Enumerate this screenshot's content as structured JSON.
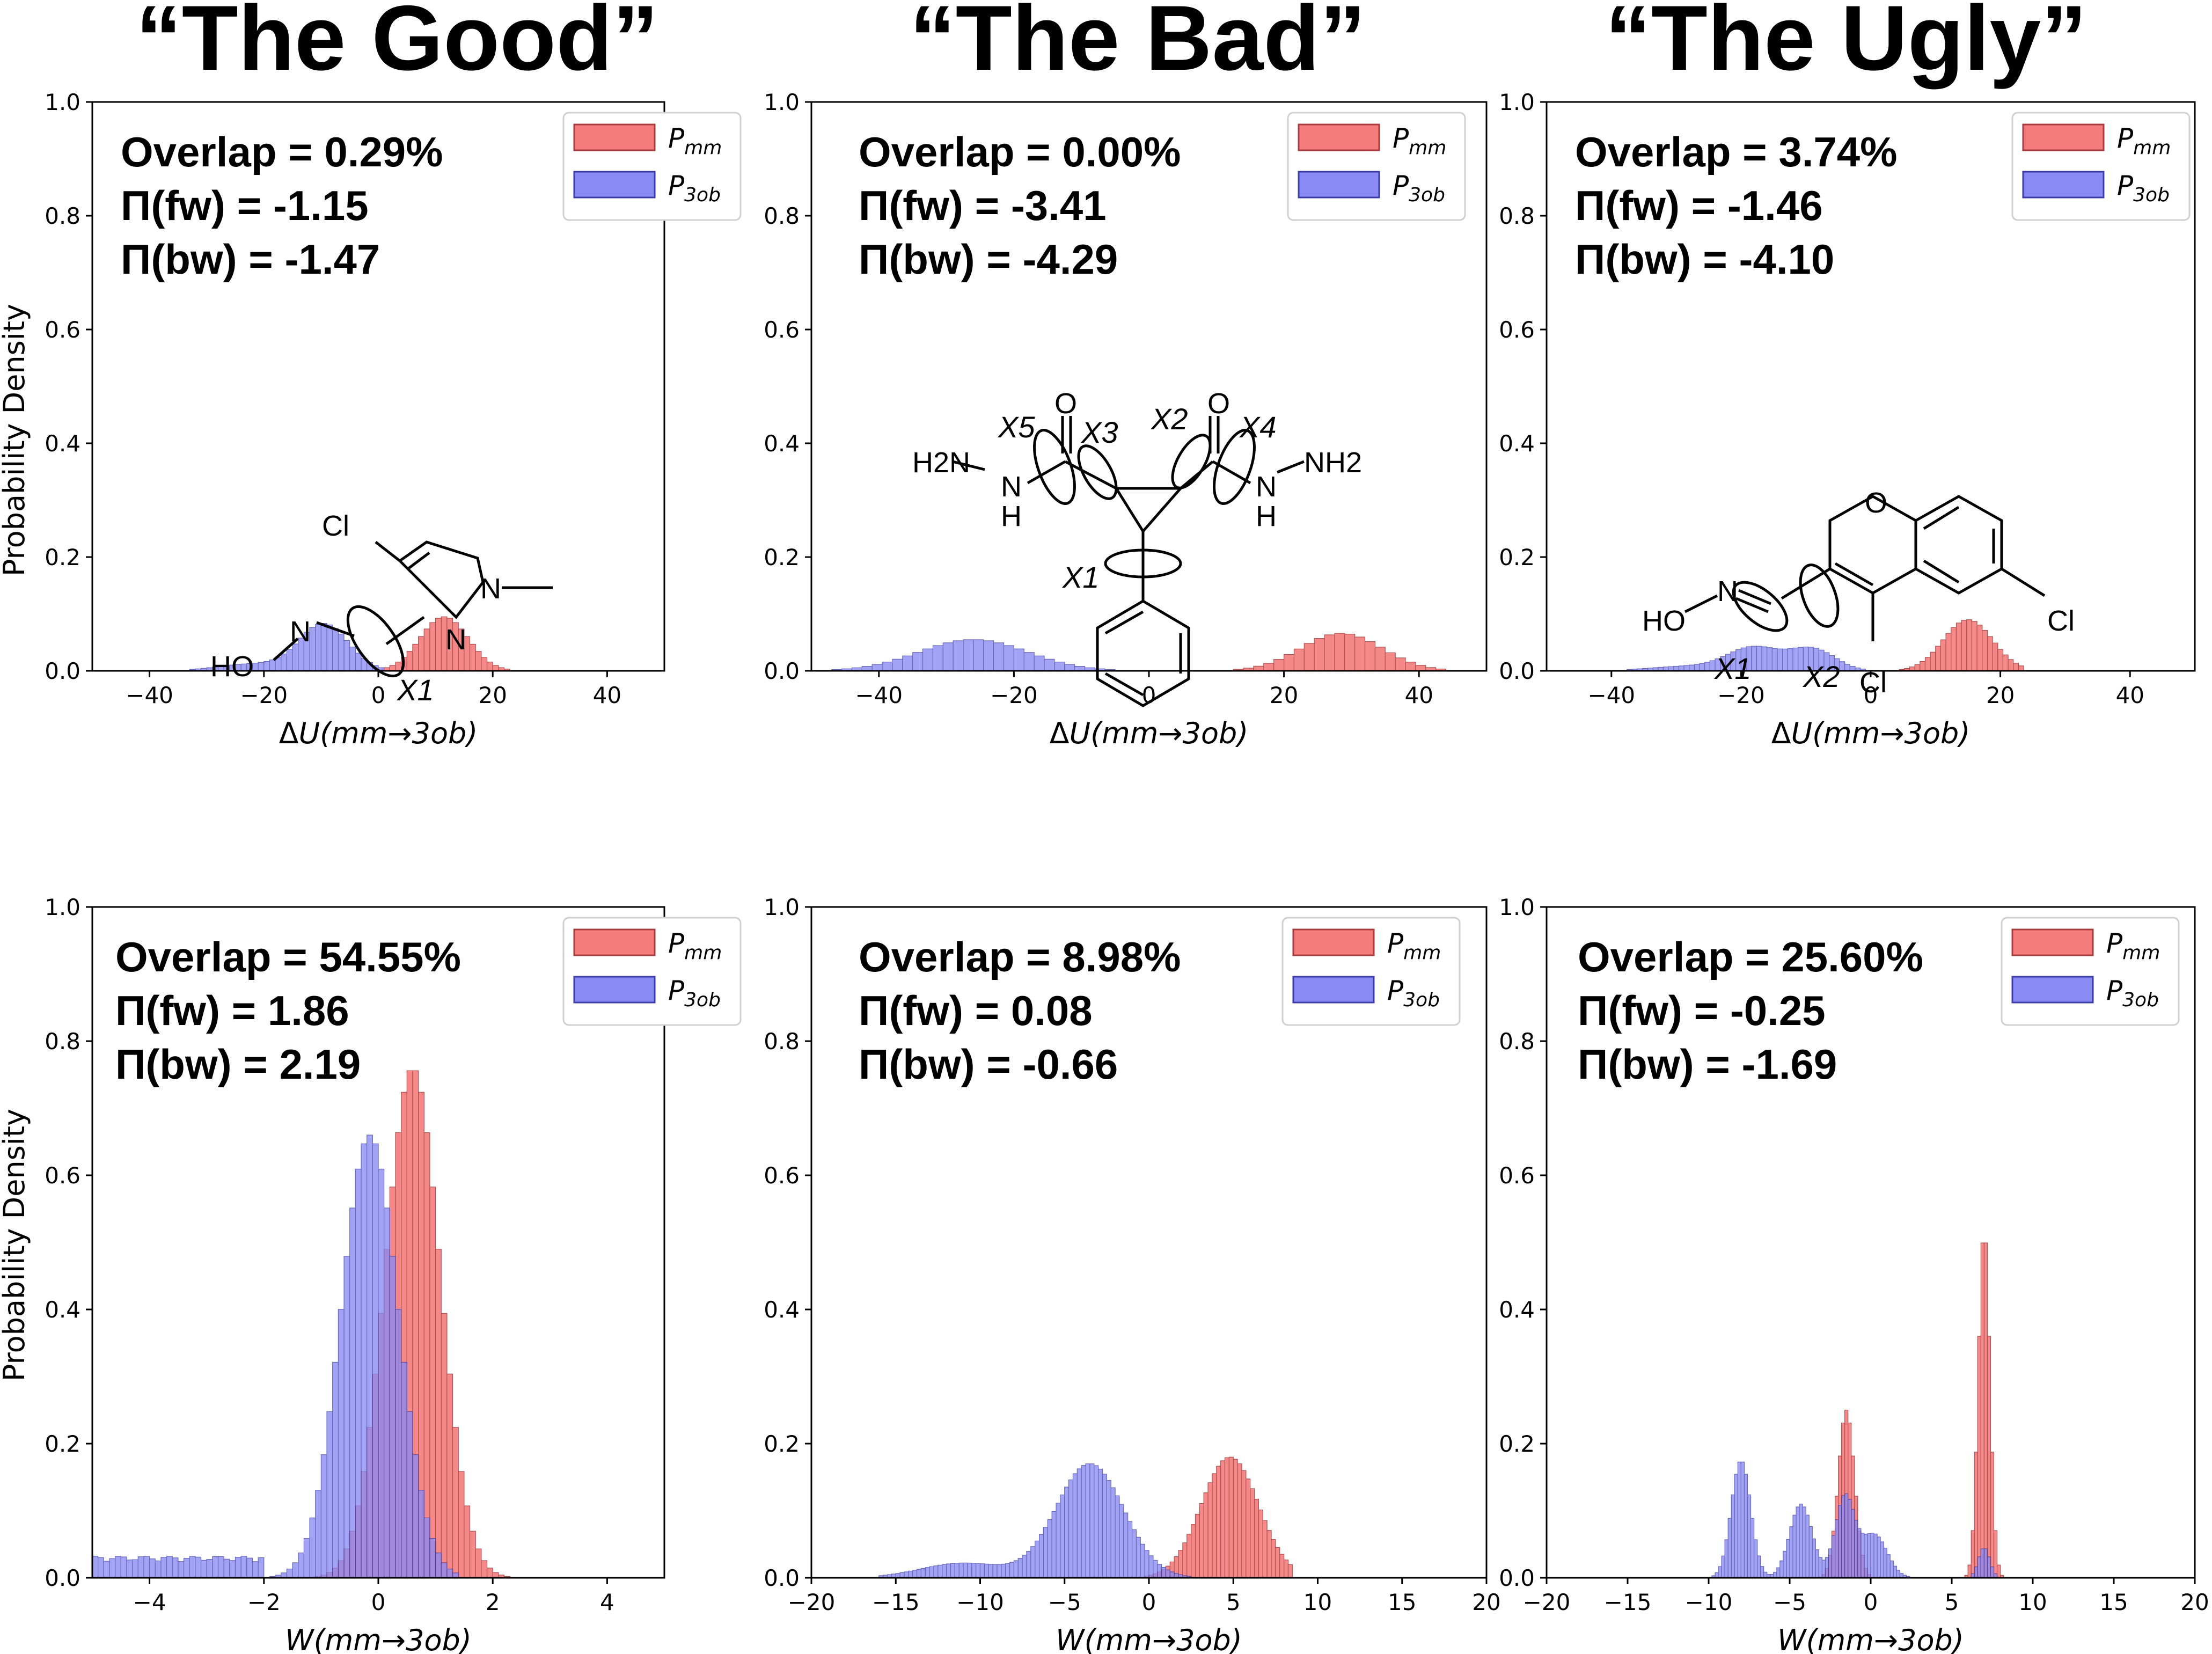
{
  "column_titles": [
    "“The Good”",
    "“The Bad”",
    "“The Ugly”"
  ],
  "y_axis_label": "Probability Density",
  "legend": {
    "entries": [
      {
        "main": "P",
        "sub": "mm",
        "color": "#f47c7c",
        "edge": "#a83c3c"
      },
      {
        "main": "P",
        "sub": "3ob",
        "color": "#8a8af4",
        "edge": "#3c3ca8"
      }
    ]
  },
  "molecule_labels": {
    "good": [
      "Cl",
      "N",
      "N",
      "N",
      "HO",
      "X1"
    ],
    "bad": [
      "O",
      "O",
      "X5",
      "X3",
      "X2",
      "X4",
      "H2N",
      "N",
      "H",
      "N",
      "H",
      "NH2",
      "X1"
    ],
    "ugly": [
      "O",
      "N",
      "HO",
      "Cl",
      "Cl",
      "X1",
      "X2"
    ]
  },
  "chart_data": [
    {
      "id": "good_dU",
      "type": "bar",
      "xlabel": "ΔU(mm→3ob)",
      "ylabel": "Probability Density",
      "xlim": [
        -50,
        50
      ],
      "ylim": [
        0,
        1.0
      ],
      "xticks": [
        -40,
        -20,
        0,
        20,
        40
      ],
      "xtick_labels": [
        "−40",
        "−20",
        "0",
        "20",
        "40"
      ],
      "yticks": [
        0.0,
        0.2,
        0.4,
        0.6,
        0.8,
        1.0
      ],
      "stats": [
        "Overlap = 0.29%",
        "Π(fw) = -1.15",
        "Π(bw) = -1.47"
      ],
      "series": [
        {
          "name": "P_mm",
          "dist": [
            {
              "mu": 11.5,
              "sigma": 4.2,
              "h": 0.095
            }
          ],
          "range": [
            0,
            26
          ],
          "bw": 1.0
        },
        {
          "name": "P_3ob",
          "dist": [
            {
              "mu": -9.5,
              "sigma": 4.3,
              "h": 0.082
            },
            {
              "mu": -22,
              "sigma": 6,
              "h": 0.012
            }
          ],
          "range": [
            -40,
            1
          ],
          "bw": 1.0
        }
      ]
    },
    {
      "id": "bad_dU",
      "type": "bar",
      "xlabel": "ΔU(mm→3ob)",
      "ylabel": "",
      "xlim": [
        -50,
        50
      ],
      "ylim": [
        0,
        1.0
      ],
      "xticks": [
        -40,
        -20,
        0,
        20,
        40
      ],
      "xtick_labels": [
        "−40",
        "−20",
        "0",
        "20",
        "40"
      ],
      "yticks": [
        0.0,
        0.2,
        0.4,
        0.6,
        0.8,
        1.0
      ],
      "stats": [
        "Overlap = 0.00%",
        "Π(fw) = -3.41",
        "Π(bw) = -4.29"
      ],
      "series": [
        {
          "name": "P_mm",
          "dist": [
            {
              "mu": 28.5,
              "sigma": 6.0,
              "h": 0.066
            }
          ],
          "range": [
            11,
            45
          ],
          "bw": 1.5
        },
        {
          "name": "P_3ob",
          "dist": [
            {
              "mu": -26,
              "sigma": 8.0,
              "h": 0.055
            }
          ],
          "range": [
            -50,
            -4
          ],
          "bw": 1.5
        }
      ]
    },
    {
      "id": "ugly_dU",
      "type": "bar",
      "xlabel": "ΔU(mm→3ob)",
      "ylabel": "",
      "xlim": [
        -50,
        50
      ],
      "ylim": [
        0,
        1.0
      ],
      "xticks": [
        -40,
        -20,
        0,
        20,
        40
      ],
      "xtick_labels": [
        "−40",
        "−20",
        "0",
        "20",
        "40"
      ],
      "yticks": [
        0.0,
        0.2,
        0.4,
        0.6,
        0.8,
        1.0
      ],
      "stats": [
        "Overlap = 3.74%",
        "Π(fw) = -1.46",
        "Π(bw) = -4.10"
      ],
      "series": [
        {
          "name": "P_mm",
          "dist": [
            {
              "mu": 15,
              "sigma": 3.8,
              "h": 0.09
            }
          ],
          "range": [
            2,
            23
          ],
          "bw": 0.8
        },
        {
          "name": "P_3ob",
          "dist": [
            {
              "mu": -9,
              "sigma": 3.5,
              "h": 0.038
            },
            {
              "mu": -18,
              "sigma": 4.0,
              "h": 0.04
            },
            {
              "mu": -28,
              "sigma": 6,
              "h": 0.008
            }
          ],
          "range": [
            -40,
            1
          ],
          "bw": 0.8
        }
      ]
    },
    {
      "id": "good_W",
      "type": "bar",
      "xlabel": "W(mm→3ob)",
      "ylabel": "Probability Density",
      "xlim": [
        -5,
        5
      ],
      "ylim": [
        0,
        1.0
      ],
      "xticks": [
        -4,
        -2,
        0,
        2,
        4
      ],
      "xtick_labels": [
        "−4",
        "−2",
        "0",
        "2",
        "4"
      ],
      "yticks": [
        0.0,
        0.2,
        0.4,
        0.6,
        0.8,
        1.0
      ],
      "stats": [
        "Overlap = 54.55%",
        "Π(fw) = 1.86",
        "Π(bw) = 2.19"
      ],
      "series": [
        {
          "name": "P_mm",
          "dist": [
            {
              "mu": 0.6,
              "sigma": 0.48,
              "h": 0.76
            }
          ],
          "range": [
            -1.1,
            3.3
          ],
          "bw": 0.1
        },
        {
          "name": "P_3ob",
          "dist": [
            {
              "mu": -0.15,
              "sigma": 0.5,
              "h": 0.66
            }
          ],
          "range": [
            -1.9,
            1.3
          ],
          "bw": 0.1,
          "tail": {
            "from": -5,
            "to": -2,
            "h": 0.028
          }
        }
      ]
    },
    {
      "id": "bad_W",
      "type": "bar",
      "xlabel": "W(mm→3ob)",
      "ylabel": "",
      "xlim": [
        -20,
        20
      ],
      "ylim": [
        0,
        1.0
      ],
      "xticks": [
        -20,
        -15,
        -10,
        -5,
        0,
        5,
        10,
        15,
        20
      ],
      "xtick_labels": [
        "−20",
        "−15",
        "−10",
        "−5",
        "0",
        "5",
        "10",
        "15",
        "20"
      ],
      "yticks": [
        0.0,
        0.2,
        0.4,
        0.6,
        0.8,
        1.0
      ],
      "stats": [
        "Overlap = 8.98%",
        "Π(fw) = 0.08",
        "Π(bw) = -0.66"
      ],
      "series": [
        {
          "name": "P_mm",
          "dist": [
            {
              "mu": 4.8,
              "sigma": 1.7,
              "h": 0.18
            }
          ],
          "range": [
            -1,
            8.5
          ],
          "bw": 0.25
        },
        {
          "name": "P_3ob",
          "dist": [
            {
              "mu": -3.5,
              "sigma": 2.0,
              "h": 0.17
            },
            {
              "mu": -11,
              "sigma": 2.5,
              "h": 0.022
            }
          ],
          "range": [
            -16,
            3
          ],
          "bw": 0.25
        }
      ]
    },
    {
      "id": "ugly_W",
      "type": "bar",
      "xlabel": "W(mm→3ob)",
      "ylabel": "",
      "xlim": [
        -20,
        20
      ],
      "ylim": [
        0,
        1.0
      ],
      "xticks": [
        -20,
        -15,
        -10,
        -5,
        0,
        5,
        10,
        15,
        20
      ],
      "xtick_labels": [
        "−20",
        "−15",
        "−10",
        "−5",
        "0",
        "5",
        "10",
        "15",
        "20"
      ],
      "yticks": [
        0.0,
        0.2,
        0.4,
        0.6,
        0.8,
        1.0
      ],
      "stats": [
        "Overlap = 25.60%",
        "Π(fw) = -0.25",
        "Π(bw) = -1.69"
      ],
      "series": [
        {
          "name": "P_mm",
          "dist": [
            {
              "mu": 7.0,
              "sigma": 0.35,
              "h": 0.52
            },
            {
              "mu": -1.5,
              "sigma": 0.5,
              "h": 0.25
            }
          ],
          "range": [
            -3,
            8.5
          ],
          "bw": 0.2
        },
        {
          "name": "P_3ob",
          "dist": [
            {
              "mu": -8,
              "sigma": 0.6,
              "h": 0.175
            },
            {
              "mu": -4.3,
              "sigma": 0.7,
              "h": 0.11
            },
            {
              "mu": -1.6,
              "sigma": 0.6,
              "h": 0.12
            },
            {
              "mu": 0.2,
              "sigma": 0.8,
              "h": 0.065
            },
            {
              "mu": 7.0,
              "sigma": 0.35,
              "h": 0.045
            }
          ],
          "range": [
            -10,
            8
          ],
          "bw": 0.2
        }
      ]
    }
  ]
}
